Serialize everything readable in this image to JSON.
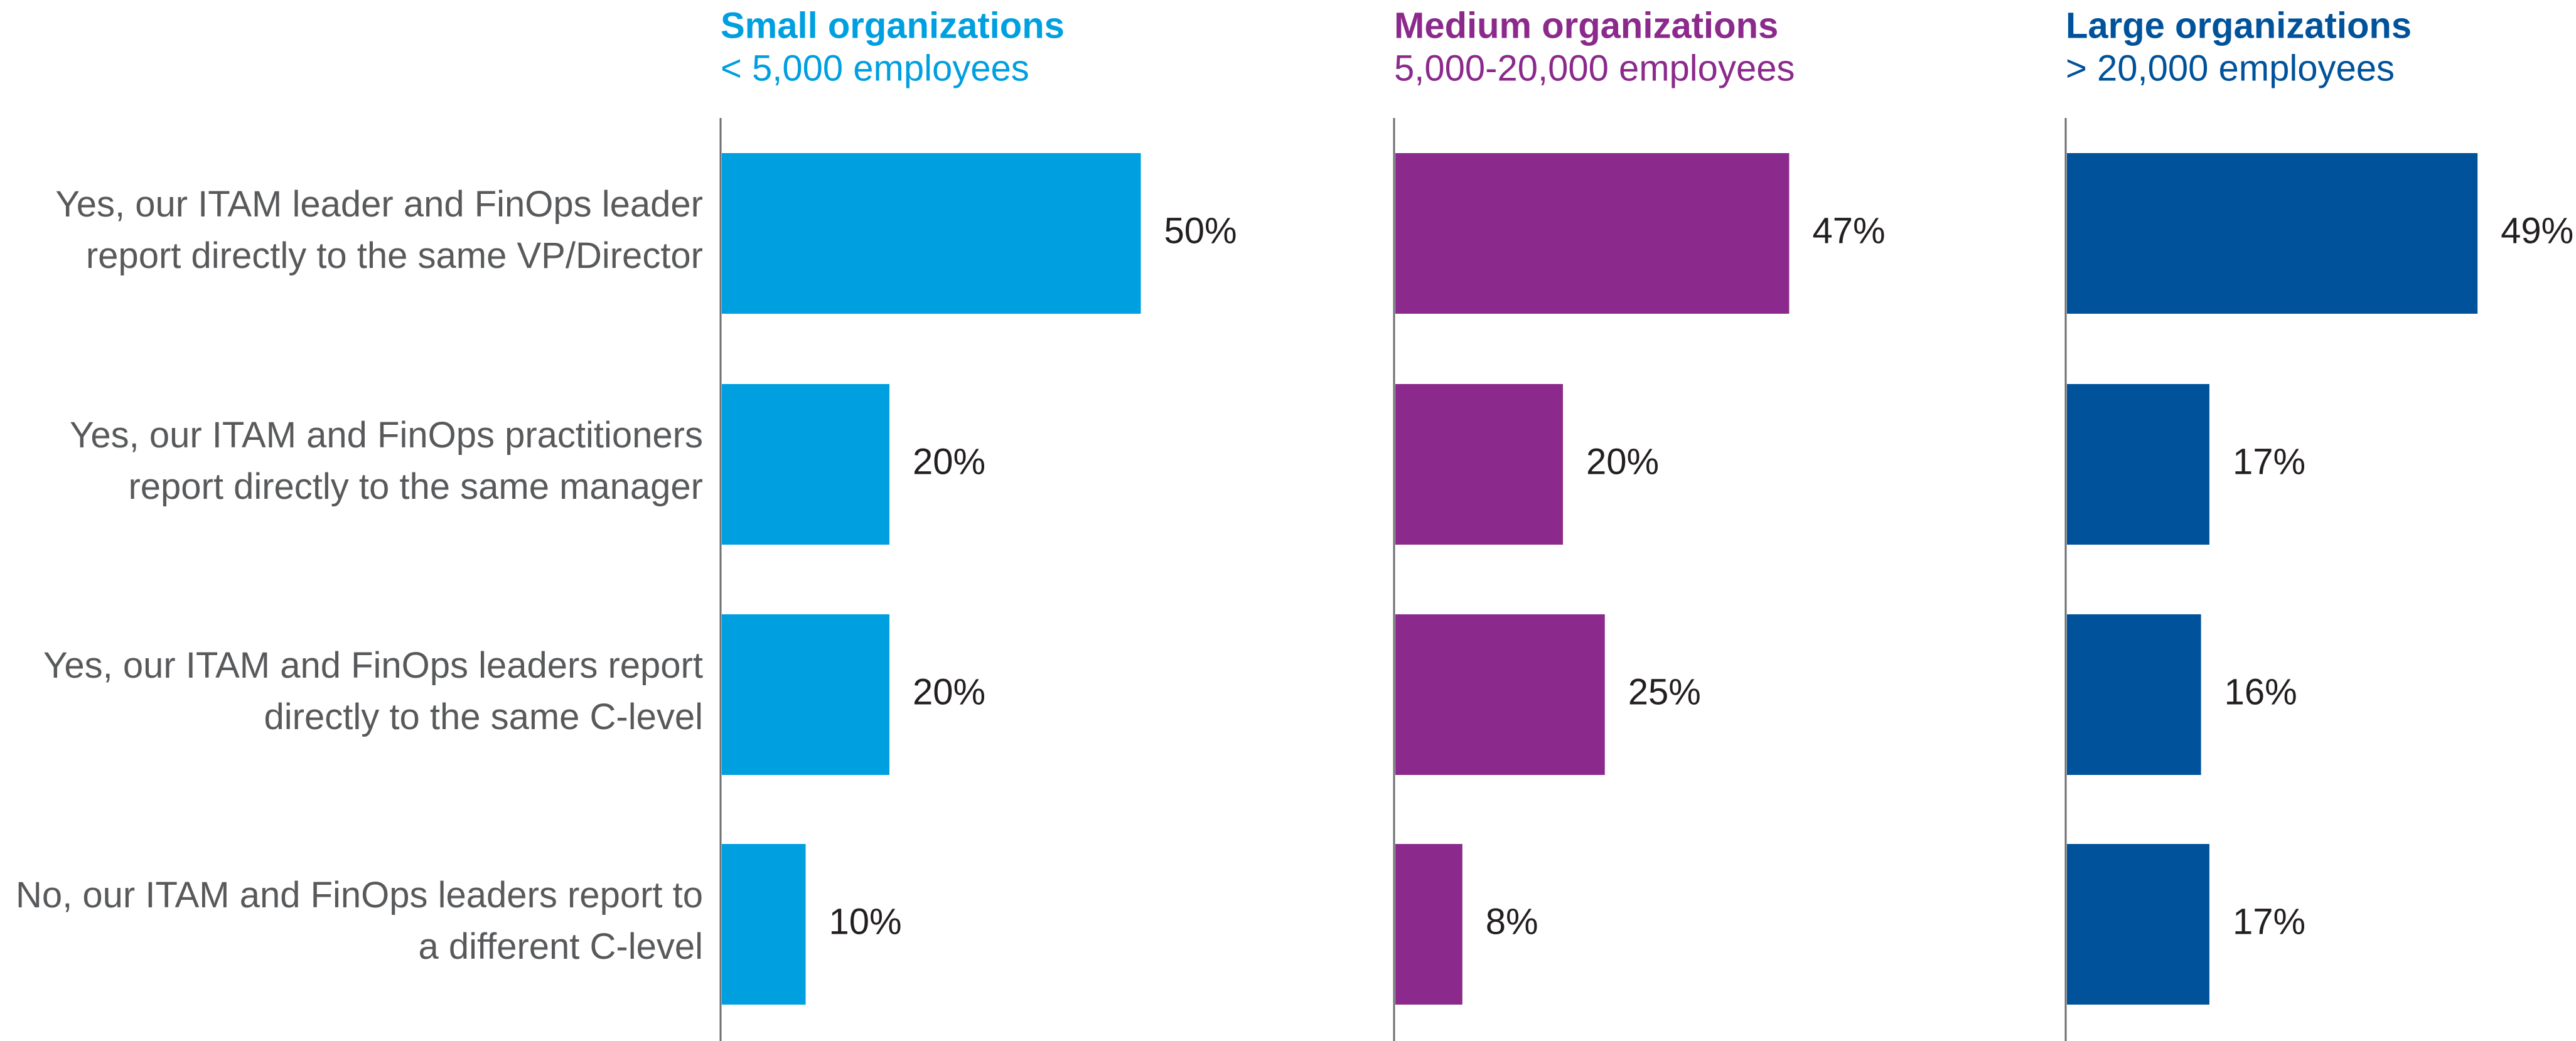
{
  "chart_data": {
    "type": "bar",
    "orientation": "horizontal",
    "categories": [
      "Yes, our ITAM leader and FinOps leader\nreport directly to the same VP/Director",
      "Yes, our ITAM and FinOps practitioners\nreport directly to the same manager",
      "Yes, our ITAM and FinOps leaders report\ndirectly to the same C-level",
      "No, our ITAM and FinOps leaders report to\na different C-level"
    ],
    "panels": [
      {
        "title": "Small organizations",
        "subtitle": "< 5,000 employees",
        "color": "#009FE0",
        "values": [
          50,
          20,
          20,
          10
        ],
        "value_labels": [
          "50%",
          "20%",
          "20%",
          "10%"
        ]
      },
      {
        "title": "Medium organizations",
        "subtitle": "5,000-20,000 employees",
        "color": "#8B2A8C",
        "values": [
          47,
          20,
          25,
          8
        ],
        "value_labels": [
          "47%",
          "20%",
          "25%",
          "8%"
        ]
      },
      {
        "title": "Large organizations",
        "subtitle": "> 20,000 employees",
        "color": "#00529B",
        "values": [
          49,
          17,
          16,
          17
        ],
        "value_labels": [
          "49%",
          "17%",
          "16%",
          "17%"
        ]
      }
    ],
    "xlim": [
      0,
      100
    ],
    "grid": false,
    "legend": "none"
  }
}
